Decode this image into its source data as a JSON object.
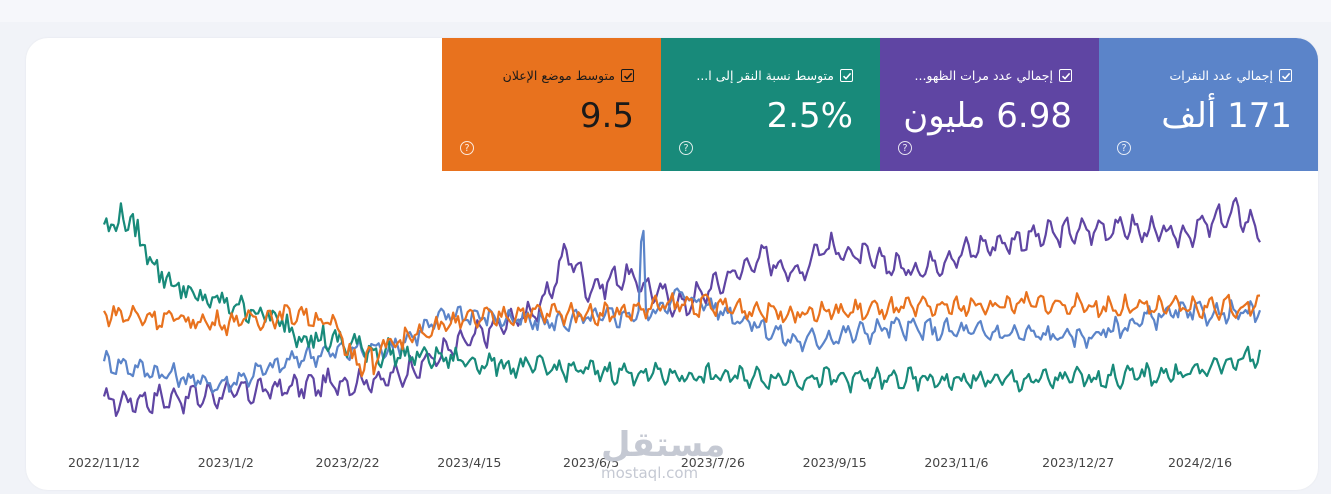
{
  "metrics": [
    {
      "id": "clicks",
      "label": "إجمالي عدد النقرات",
      "value": "171 ألف",
      "color": "#5b84c9"
    },
    {
      "id": "impressions",
      "label": "إجمالي عدد مرات الظهو...",
      "value": "6.98 مليون",
      "color": "#5f45a3"
    },
    {
      "id": "ctr",
      "label": "متوسط نسبة النقر إلى ا...",
      "value": "2.5%",
      "color": "#188a7a"
    },
    {
      "id": "position",
      "label": "متوسط موضع الإعلان",
      "value": "9.5",
      "color": "#e8721e"
    }
  ],
  "help_glyph": "?",
  "watermark": {
    "arabic": "مستقل",
    "latin": "mostaql.com"
  },
  "chart_data": {
    "type": "line",
    "x_ticks": [
      "2022/11/12",
      "2023/1/2",
      "2023/2/22",
      "2023/4/15",
      "2023/6/5",
      "2023/7/26",
      "2023/9/15",
      "2023/11/6",
      "2023/12/27",
      "2024/2/16"
    ],
    "x_range": [
      "2022/11/12",
      "2024/3/10"
    ],
    "y_axis_visible": false,
    "grid": false,
    "series": [
      {
        "name": "إجمالي عدد مرات الظهو...",
        "color": "#5f45a3",
        "keyframes": [
          [
            0,
            15
          ],
          [
            7,
            17
          ],
          [
            25,
            25
          ],
          [
            32,
            42
          ],
          [
            38,
            55
          ],
          [
            40,
            78
          ],
          [
            42,
            62
          ],
          [
            45,
            68
          ],
          [
            50,
            55
          ],
          [
            57,
            76
          ],
          [
            60,
            68
          ],
          [
            62,
            80
          ],
          [
            70,
            70
          ],
          [
            76,
            80
          ],
          [
            82,
            85
          ],
          [
            88,
            88
          ],
          [
            93,
            84
          ],
          [
            98,
            94
          ],
          [
            100,
            87
          ]
        ]
      },
      {
        "name": "إجمالي عدد النقرات",
        "color": "#5b84c9",
        "keyframes": [
          [
            0,
            32
          ],
          [
            10,
            22
          ],
          [
            18,
            35
          ],
          [
            25,
            38
          ],
          [
            30,
            52
          ],
          [
            38,
            48
          ],
          [
            47,
            52
          ],
          [
            50,
            60
          ],
          [
            60,
            40
          ],
          [
            68,
            46
          ],
          [
            76,
            44
          ],
          [
            85,
            42
          ],
          [
            92,
            52
          ],
          [
            100,
            52
          ]
        ]
      },
      {
        "name": "متوسط نسبة النقر إلى ا...",
        "color": "#188a7a",
        "keyframes": [
          [
            0,
            88
          ],
          [
            2,
            92
          ],
          [
            5,
            68
          ],
          [
            8,
            58
          ],
          [
            12,
            55
          ],
          [
            18,
            42
          ],
          [
            25,
            35
          ],
          [
            30,
            33
          ],
          [
            35,
            30
          ],
          [
            42,
            28
          ],
          [
            50,
            26
          ],
          [
            60,
            25
          ],
          [
            70,
            24
          ],
          [
            80,
            24
          ],
          [
            90,
            26
          ],
          [
            95,
            28
          ],
          [
            100,
            35
          ]
        ]
      },
      {
        "name": "متوسط موضع الإعلان",
        "color": "#e8721e",
        "keyframes": [
          [
            0,
            52
          ],
          [
            10,
            48
          ],
          [
            17,
            52
          ],
          [
            20,
            47
          ],
          [
            22,
            30
          ],
          [
            26,
            43
          ],
          [
            30,
            48
          ],
          [
            36,
            52
          ],
          [
            44,
            52
          ],
          [
            50,
            56
          ],
          [
            60,
            52
          ],
          [
            70,
            54
          ],
          [
            80,
            56
          ],
          [
            90,
            54
          ],
          [
            100,
            55
          ]
        ]
      }
    ]
  }
}
